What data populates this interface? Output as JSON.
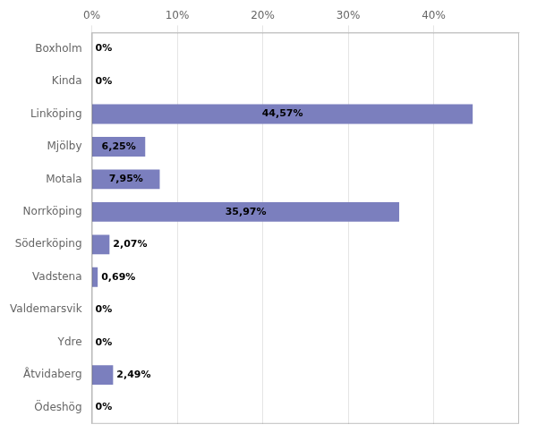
{
  "chart_data": {
    "type": "bar",
    "orientation": "horizontal",
    "categories": [
      "Boxholm",
      "Kinda",
      "Linköping",
      "Mjölby",
      "Motala",
      "Norrköping",
      "Söderköping",
      "Vadstena",
      "Valdemarsvik",
      "Ydre",
      "Åtvidaberg",
      "Ödeshög"
    ],
    "values": [
      0.0,
      0.0,
      44.57,
      6.25,
      7.95,
      35.97,
      2.07,
      0.69,
      0.0,
      0.0,
      2.49,
      0.0
    ],
    "value_labels": [
      "0%",
      "0%",
      "44,57%",
      "6,25%",
      "7,95%",
      "35,97%",
      "2,07%",
      "0,69%",
      "0%",
      "0%",
      "2,49%",
      "0%"
    ],
    "color": "#7b7fbe",
    "xlim": [
      0,
      50
    ],
    "xticks": [
      {
        "value": 0,
        "label": "0%"
      },
      {
        "value": 10,
        "label": "10%"
      },
      {
        "value": 20,
        "label": "20%"
      },
      {
        "value": 30,
        "label": "30%"
      },
      {
        "value": 40,
        "label": "40%"
      }
    ],
    "grid": true,
    "data_labels": true
  }
}
